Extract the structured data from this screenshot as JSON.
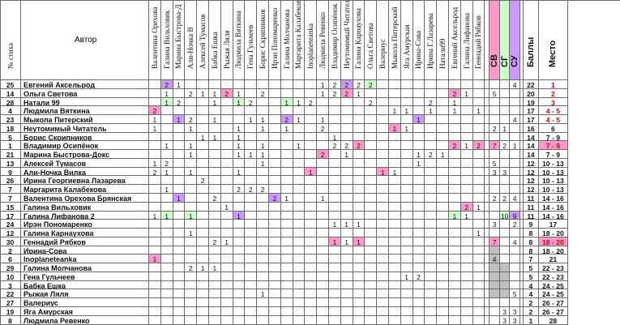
{
  "header": {
    "num_label": "№ стиха",
    "author_label": "Автор",
    "judges": [
      "Валентина Орехова",
      "Галина Вильховик",
      "Марина Быстрова-Д",
      "Али-Ночка В",
      "Алексей Тумасов",
      "Бабка Ешка",
      "Рыжая Ляля",
      "Людмила Вяткина",
      "Гена Гульчеев",
      "Борис Скрипников",
      "Ирэн Пономаренко",
      "Галина Молчанова",
      "Маргарита Калабекова",
      "Inoplaneteanka",
      "Людмила Ревенко",
      "Владимир Осипёнок",
      "Неутомимый Читатель",
      "Галина Карнаухова",
      "Ольга Светова",
      "Валериус",
      "Мыкола Питерский",
      "Яга Амурская",
      "Ирина-Сова",
      "Ирина Г.Лазарева",
      "Натали99",
      "Евгений Аксельрод",
      "Галина Лифанова",
      "Геннадий Рябков"
    ],
    "cat_labels": [
      "СВ",
      "СГ",
      "СУ"
    ],
    "score_label": "Баллы",
    "place_label": "Место"
  },
  "colors": {
    "pink": "#ff99cc",
    "green": "#ccffcc",
    "violet": "#cc99ff",
    "gray": "#c0c0c0",
    "red_text": "#cc0000"
  },
  "rows": [
    {
      "num": "25",
      "author": "Евгений Аксельрод",
      "votes": [
        "",
        "2v",
        "1",
        "",
        "",
        "",
        "",
        "",
        "",
        "",
        "",
        "",
        "",
        "",
        "1",
        "2",
        "2v",
        "2",
        "2g",
        "",
        "",
        "",
        "",
        "",
        "",
        "",
        "",
        ""
      ],
      "sv": "",
      "sg": "",
      "su": "4",
      "score": "22",
      "place": "1",
      "place_red": true
    },
    {
      "num": "14",
      "author": "Ольга Светова",
      "votes": [
        "",
        "1",
        "",
        "2",
        "1",
        "1",
        "2p",
        "1",
        "",
        "2",
        "",
        "",
        "",
        "",
        "1",
        "2",
        "2p",
        "1",
        "",
        "",
        "",
        "",
        "",
        "",
        "",
        "2p",
        "1",
        ""
      ],
      "sv": "5",
      "sg": "",
      "su": "",
      "score": "20",
      "place": "2",
      "place_red": true
    },
    {
      "num": "28",
      "author": "Натали 99",
      "votes": [
        "",
        "1g",
        "2",
        "",
        "",
        "1",
        "",
        "1g",
        "2",
        "",
        "",
        "1g",
        "1",
        "2",
        "",
        "",
        "",
        "",
        "2",
        "",
        "",
        "",
        "",
        "2",
        "",
        "1",
        "",
        ""
      ],
      "sv": "",
      "sg": "",
      "su": "",
      "score": "19",
      "place": "3",
      "place_red": true
    },
    {
      "num": "4",
      "author": "Людмила Вяткина",
      "votes": [
        "2p",
        "",
        "",
        "",
        "",
        "",
        "",
        "",
        "",
        "",
        "",
        "",
        "",
        "",
        "",
        "",
        "",
        "",
        "",
        "",
        "1",
        "1",
        "",
        "1",
        "",
        "1",
        "",
        "1"
      ],
      "sv": "",
      "sg": "",
      "su": "",
      "score": "17",
      "place": "4 - 5",
      "place_red": true
    },
    {
      "num": "23",
      "author": "Мыкола Питерский",
      "votes": [
        "1",
        "",
        "1v",
        "2",
        "",
        "1",
        "",
        "",
        "1",
        "1",
        "",
        "2v",
        "1",
        "",
        "1",
        "",
        "",
        "",
        "",
        "",
        "",
        "",
        "1v",
        "",
        "",
        "",
        "",
        ""
      ],
      "sv": "",
      "sg": "",
      "su": "4",
      "score": "17",
      "place": "4 - 5",
      "place_red": true
    },
    {
      "num": "18",
      "author": "Неутомимый Читатель",
      "votes": [
        "1",
        "",
        "",
        "1",
        "",
        "",
        "",
        "1",
        "",
        "1",
        "",
        "1",
        "",
        "",
        "2",
        "",
        "",
        "",
        "",
        "",
        "1p",
        "1",
        "",
        "",
        "",
        "",
        "",
        ""
      ],
      "sv": "2",
      "sg": "1",
      "su": "",
      "score": "16",
      "place": "6",
      "place_red": false
    },
    {
      "num": "5",
      "author": "Борис Скрипников",
      "votes": [
        "",
        "",
        "",
        "",
        "1",
        "1",
        "",
        "1",
        "",
        "",
        "",
        "",
        "",
        "",
        "",
        "1",
        "",
        "",
        "",
        "",
        "",
        "",
        "",
        "",
        "",
        "",
        "",
        ""
      ],
      "sv": "",
      "sg": "",
      "su": "",
      "score": "14",
      "place": "7 - 9",
      "place_red": false
    },
    {
      "num": "1",
      "author": "Владимир Осипёнок",
      "votes": [
        "",
        "1",
        "",
        "1",
        "",
        "",
        "",
        "1",
        "",
        "1",
        "",
        "",
        "1",
        "",
        "",
        "2",
        "2",
        "2p",
        "",
        "",
        "",
        "",
        "",
        "",
        "",
        "2p",
        "1",
        "2p"
      ],
      "sv": "7p",
      "sg": "2",
      "su": "1",
      "score": "14",
      "place": "7 - 9",
      "place_red": true
    },
    {
      "num": "21",
      "author": "Марина Быстрова-Докс",
      "votes": [
        "",
        "",
        "",
        "1",
        "",
        "",
        "",
        "1",
        "1",
        "1",
        "",
        "",
        "",
        "",
        "2p",
        "",
        "1",
        "",
        "",
        "",
        "",
        "",
        "1",
        "2",
        "1",
        "",
        "",
        ""
      ],
      "sv": "",
      "sg": "",
      "su": "",
      "score": "14",
      "place": "7 - 9",
      "place_red": false
    },
    {
      "num": "13",
      "author": "Алексей Тумасов",
      "votes": [
        "1",
        "2",
        "",
        "",
        "",
        "",
        "",
        "",
        "",
        "1",
        "",
        "",
        "",
        "",
        "",
        "",
        "",
        "",
        "",
        "",
        "",
        "",
        "1",
        "",
        "",
        "",
        "",
        ""
      ],
      "sv": "5",
      "sg": "",
      "su": "",
      "score": "12",
      "place": "10 - 13",
      "place_red": false
    },
    {
      "num": "9",
      "author": "Али-Ночка Вилка",
      "votes": [
        "2",
        "1",
        "",
        "1",
        "",
        "",
        "",
        "1",
        "",
        "",
        "",
        "",
        "",
        "1p",
        "",
        "",
        "",
        "",
        "",
        "1p",
        "1",
        "",
        "",
        "",
        "",
        "",
        "",
        ""
      ],
      "sv": "3",
      "sg": "3",
      "su": "",
      "score": "12",
      "place": "10 - 13",
      "place_red": false
    },
    {
      "num": "26",
      "author": "Ирина Георгиевна Лазарева",
      "votes": [
        "",
        "",
        "",
        "",
        "2",
        "",
        "",
        "",
        "",
        "",
        "",
        "",
        "",
        "",
        "",
        "",
        "",
        "",
        "",
        "",
        "",
        "",
        "",
        "",
        "",
        "",
        "",
        ""
      ],
      "sv": "",
      "sg": "",
      "su": "",
      "score": "12",
      "place": "10 - 13",
      "place_red": false
    },
    {
      "num": "7",
      "author": "Маргарита Калабекова",
      "votes": [
        "",
        "1",
        "",
        "",
        "",
        "",
        "",
        "2",
        "2",
        "2",
        "",
        "",
        "",
        "",
        "",
        "",
        "",
        "",
        "",
        "",
        "",
        "",
        "",
        "",
        "",
        "",
        "",
        ""
      ],
      "sv": "",
      "sg": "",
      "su": "",
      "score": "12",
      "place": "10 - 13",
      "place_red": false
    },
    {
      "num": "7",
      "author": "Валентина Орехова Брянская",
      "votes": [
        "",
        "",
        "1v",
        "",
        "",
        "2",
        "",
        "",
        "",
        "",
        "2v",
        "1",
        "",
        "",
        "1",
        "",
        "",
        "",
        "",
        "",
        "",
        "",
        "",
        "",
        "",
        "",
        "",
        ""
      ],
      "sv": "2",
      "sg": "2",
      "su": "4",
      "score": "11",
      "place": "14 - 16",
      "place_red": false
    },
    {
      "num": "15",
      "author": "Галина Вильховик",
      "votes": [
        "",
        "",
        "",
        "",
        "",
        "",
        "1",
        "",
        "",
        "",
        "",
        "",
        "",
        "",
        "",
        "",
        "",
        "",
        "",
        "",
        "",
        "",
        "",
        "",
        "",
        "",
        "2p",
        "1"
      ],
      "sv": "",
      "sg": "",
      "su": "",
      "score": "11",
      "place": "14 - 16",
      "place_red": false
    },
    {
      "num": "17",
      "author": "Галина Лифанова 2",
      "votes": [
        "1",
        "1g",
        "",
        "1g",
        "",
        "",
        "",
        "1v",
        "",
        "",
        "",
        "",
        "",
        "",
        "",
        "",
        "",
        "",
        "",
        "",
        "",
        "",
        "",
        "",
        "",
        "1g",
        "1",
        ""
      ],
      "sv": "",
      "sg": "10g",
      "su": "9v",
      "score": "11",
      "place": "14 - 16",
      "place_red": false
    },
    {
      "num": "24",
      "author": "Ирэн Пономаренко",
      "votes": [
        "",
        "",
        "",
        "",
        "",
        "",
        "",
        "",
        "",
        "",
        "",
        "",
        "",
        "",
        "",
        "1",
        "1",
        "1",
        "",
        "",
        "",
        "",
        "",
        "",
        "",
        "",
        "",
        ""
      ],
      "sv": "3",
      "sg": "",
      "su": "2",
      "score": "9",
      "place": "17",
      "place_red": false
    },
    {
      "num": "12",
      "author": "Галина Карнаухова",
      "votes": [
        "",
        "",
        "",
        "1",
        "",
        "",
        "",
        "",
        "",
        "",
        "",
        "",
        "",
        "",
        "",
        "",
        "",
        "",
        "",
        "",
        "",
        "",
        "",
        "",
        "",
        "",
        "",
        "1"
      ],
      "sv": "",
      "sg": "",
      "su": "",
      "score": "8",
      "place": "18 - 20",
      "place_red": false
    },
    {
      "num": "30",
      "author": "Геннадий Рябков",
      "votes": [
        "",
        "",
        "",
        "",
        "",
        "2",
        "1",
        "",
        "",
        "",
        "",
        "",
        "",
        "",
        "",
        "1p",
        "1",
        "1p",
        "",
        "",
        "",
        "",
        "",
        "",
        "",
        "",
        "",
        ""
      ],
      "sv": "7p",
      "sg": "",
      "su": "4",
      "score": "8",
      "place": "18 - 20",
      "place_red": true
    },
    {
      "num": "2",
      "author": "Ирина-Сова",
      "votes": [
        "",
        "",
        "",
        "",
        "",
        "",
        "",
        "",
        "",
        "",
        "",
        "",
        "",
        "",
        "",
        "",
        "",
        "",
        "",
        "",
        "",
        "",
        "",
        "",
        "",
        "",
        "",
        ""
      ],
      "sv": "",
      "sg": "",
      "su": "",
      "score": "8",
      "place": "18 - 20",
      "place_red": false
    },
    {
      "num": "6",
      "author": "Inoplaneteanka",
      "votes": [
        "1p",
        "",
        "",
        "",
        "",
        "",
        "",
        "",
        "",
        "",
        "",
        "",
        "",
        "",
        "",
        "",
        "",
        "",
        "",
        "",
        "",
        "",
        "",
        "",
        "",
        "",
        "",
        ""
      ],
      "sv": "4",
      "sg": "",
      "su": "",
      "score": "7",
      "place": "21",
      "place_red": false
    },
    {
      "num": "29",
      "author": "Галина Молчанова",
      "votes": [
        "",
        "",
        "",
        "2",
        "1",
        "1",
        "",
        "",
        "",
        "",
        "",
        "",
        "",
        "",
        "",
        "",
        "",
        "",
        "",
        "",
        "",
        "",
        "",
        "",
        "",
        "",
        "",
        ""
      ],
      "sv": "",
      "sg": "",
      "su": "",
      "score": "5",
      "place": "22 - 23",
      "place_red": false
    },
    {
      "num": "10",
      "author": "Гена Гульчеев",
      "votes": [
        "",
        "",
        "",
        "",
        "",
        "",
        "",
        "",
        "",
        "",
        "",
        "",
        "",
        "",
        "",
        "",
        "",
        "",
        "",
        "",
        "",
        "1",
        "2",
        "",
        "",
        "",
        "",
        ""
      ],
      "sv": "",
      "sg": "",
      "su": "",
      "score": "5",
      "place": "22 - 23",
      "place_red": false
    },
    {
      "num": "3",
      "author": "Бабка Ешка",
      "votes": [
        "",
        "",
        "",
        "",
        "",
        "",
        "",
        "",
        "",
        "",
        "",
        "",
        "",
        "",
        "",
        "",
        "",
        "",
        "",
        "",
        "",
        "",
        "",
        "",
        "",
        "",
        "",
        ""
      ],
      "sv": "",
      "sg": "",
      "su": "",
      "score": "4",
      "place": "24 - 25",
      "place_red": false
    },
    {
      "num": "22",
      "author": "Рыжая Ляля",
      "votes": [
        "",
        "",
        "",
        "",
        "",
        "",
        "",
        "",
        "",
        "1",
        "",
        "",
        "",
        "",
        "",
        "",
        "",
        "",
        "",
        "",
        "",
        "",
        "",
        "",
        "",
        "",
        "",
        ""
      ],
      "sv": "",
      "sg": "",
      "su": "5",
      "score": "4",
      "place": "24 - 25",
      "place_red": false
    },
    {
      "num": "27",
      "author": "Валериус",
      "votes": [
        "",
        "",
        "",
        "",
        "",
        "",
        "",
        "",
        "",
        "",
        "",
        "",
        "",
        "",
        "",
        "",
        "",
        "",
        "",
        "",
        "",
        "",
        "",
        "",
        "",
        "",
        "",
        ""
      ],
      "sv": "",
      "sg": "",
      "su": "",
      "score": "2",
      "place": "26 - 27",
      "place_red": false
    },
    {
      "num": "19",
      "author": "Яга Амурская",
      "votes": [
        "",
        "",
        "",
        "",
        "",
        "",
        "",
        "",
        "",
        "",
        "",
        "",
        "",
        "",
        "",
        "",
        "",
        "",
        "",
        "",
        "",
        "",
        "",
        "",
        "",
        "",
        "",
        ""
      ],
      "sv": "",
      "sg": "3",
      "su": "3",
      "score": "2",
      "place": "26 - 27",
      "place_red": false
    },
    {
      "num": "8",
      "author": "Людмила Ревенко",
      "votes": [
        "",
        "",
        "",
        "",
        "",
        "",
        "",
        "",
        "",
        "",
        "",
        "",
        "",
        "",
        "",
        "",
        "",
        "",
        "",
        "",
        "",
        "",
        "",
        "",
        "",
        "",
        "",
        ""
      ],
      "sv": "",
      "sg": "3",
      "su": "3",
      "score": "1",
      "place": "28",
      "place_red": false
    }
  ]
}
